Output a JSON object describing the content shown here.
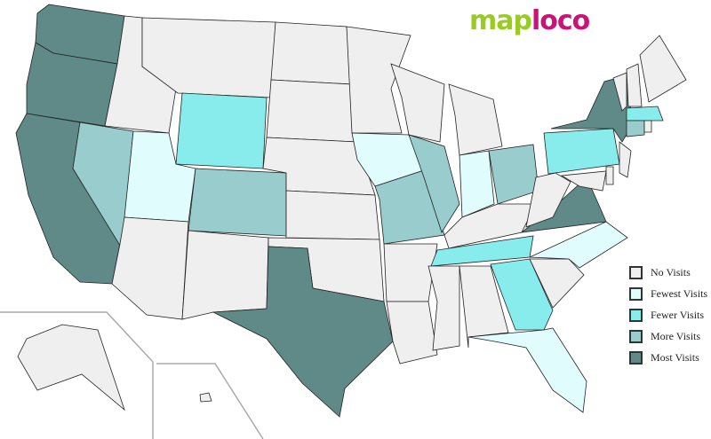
{
  "logo": {
    "part1": "map",
    "part2": "loco"
  },
  "colors": {
    "none": "#efefef",
    "fewest": "#e0fcfc",
    "fewer": "#88ecec",
    "more": "#99cccc",
    "most": "#5f8a88",
    "border": "#222222"
  },
  "legend": [
    {
      "key": "none",
      "label": "No Visits"
    },
    {
      "key": "fewest",
      "label": "Fewest Visits"
    },
    {
      "key": "fewer",
      "label": "Fewer Visits"
    },
    {
      "key": "more",
      "label": "More Visits"
    },
    {
      "key": "most",
      "label": "Most Visits"
    }
  ],
  "states": {
    "WA": "most",
    "OR": "most",
    "CA": "most",
    "TX": "most",
    "NY": "most",
    "VA": "most",
    "NV": "more",
    "CO": "more",
    "MO": "more",
    "IL": "more",
    "OH": "more",
    "CT": "more",
    "WY": "fewer",
    "PA": "fewer",
    "TN": "fewer",
    "GA": "fewer",
    "MA": "fewer",
    "UT": "fewest",
    "IA": "fewest",
    "IN": "fewest",
    "NC": "fewest",
    "FL": "fewest",
    "ID": "none",
    "MT": "none",
    "AZ": "none",
    "NM": "none",
    "ND": "none",
    "SD": "none",
    "NE": "none",
    "KS": "none",
    "OK": "none",
    "MN": "none",
    "AR": "none",
    "LA": "none",
    "WI": "none",
    "MI": "none",
    "KY": "none",
    "MS": "none",
    "AL": "none",
    "SC": "none",
    "WV": "none",
    "MD": "none",
    "NJ": "none",
    "DE": "none",
    "VT": "none",
    "NH": "none",
    "ME": "none",
    "RI": "none",
    "AK": "none",
    "HI": "none"
  }
}
